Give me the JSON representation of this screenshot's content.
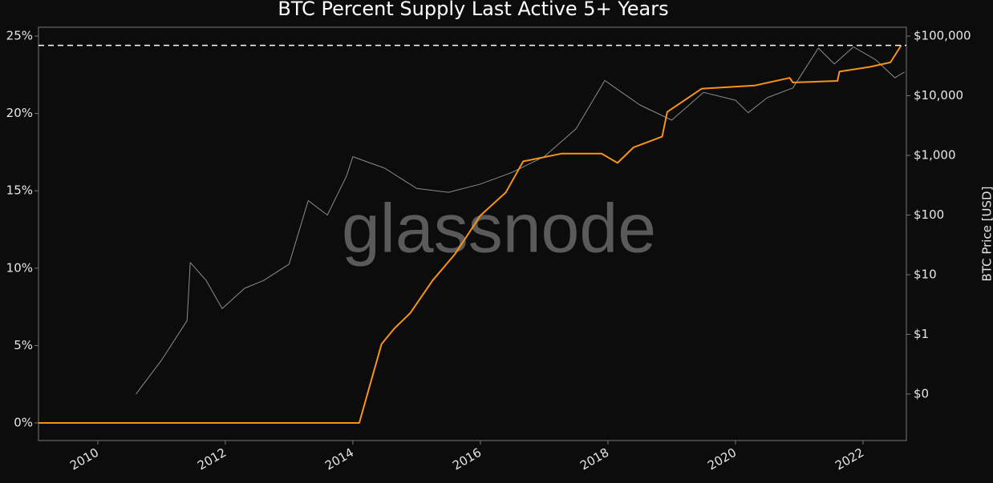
{
  "chart_data": {
    "type": "line",
    "title": "BTC Percent Supply Last Active 5+ Years",
    "watermark": "glassnode",
    "y2label": "BTC Price [USD]",
    "xlim": [
      2009.07,
      2022.68
    ],
    "xticks": [
      2010,
      2012,
      2014,
      2016,
      2018,
      2020,
      2022
    ],
    "ylim": [
      -1.14,
      25.57
    ],
    "yticks": [
      {
        "value": 0,
        "label": "0%"
      },
      {
        "value": 5,
        "label": "5%"
      },
      {
        "value": 10,
        "label": "10%"
      },
      {
        "value": 15,
        "label": "15%"
      },
      {
        "value": 20,
        "label": "20%"
      },
      {
        "value": 25,
        "label": "25%"
      }
    ],
    "y2lim": [
      0.0166,
      140600
    ],
    "y2log": true,
    "y2ticks": [
      {
        "value": 0.1,
        "label": "$0"
      },
      {
        "value": 1,
        "label": "$1"
      },
      {
        "value": 10,
        "label": "$10"
      },
      {
        "value": 100,
        "label": "$100"
      },
      {
        "value": 1000,
        "label": "$1,000"
      },
      {
        "value": 10000,
        "label": "$10,000"
      },
      {
        "value": 100000,
        "label": "$100,000"
      }
    ],
    "reference_line": {
      "y": 24.4,
      "color": "#ffffff"
    },
    "series": [
      {
        "color": "#8c8c8c",
        "axis": "y2",
        "x": [
          2010.6,
          2011.0,
          2011.4,
          2011.45,
          2011.7,
          2011.95,
          2012.3,
          2012.6,
          2013.0,
          2013.3,
          2013.6,
          2013.9,
          2014.0,
          2014.5,
          2015.0,
          2015.5,
          2016.0,
          2016.5,
          2017.0,
          2017.5,
          2017.95,
          2018.5,
          2019.0,
          2019.5,
          2020.0,
          2020.2,
          2020.5,
          2020.9,
          2021.3,
          2021.55,
          2021.85,
          2022.2,
          2022.5,
          2022.65
        ],
        "values": [
          0.1,
          0.37,
          1.7,
          16,
          8,
          2.7,
          5.9,
          8,
          15,
          175,
          100,
          450,
          950,
          610,
          280,
          240,
          330,
          520,
          950,
          2800,
          18000,
          7000,
          3900,
          11400,
          8400,
          5200,
          9300,
          13500,
          63000,
          34000,
          66000,
          40000,
          20000,
          25000
        ]
      },
      {
        "color": "#f7931a",
        "x": [
          2009.07,
          2014.1,
          2014.45,
          2014.65,
          2014.9,
          2015.25,
          2015.6,
          2016.0,
          2016.4,
          2016.67,
          2017.27,
          2017.9,
          2018.15,
          2018.4,
          2018.85,
          2018.93,
          2019.47,
          2020.3,
          2020.85,
          2020.9,
          2021.6,
          2021.63,
          2022.1,
          2022.43,
          2022.6
        ],
        "values": [
          0,
          0,
          5.1,
          6.1,
          7.1,
          9.2,
          10.9,
          13.4,
          14.9,
          16.9,
          17.4,
          17.4,
          16.8,
          17.8,
          18.5,
          20.1,
          21.6,
          21.8,
          22.3,
          22.0,
          22.1,
          22.7,
          23.0,
          23.3,
          24.4
        ]
      }
    ]
  }
}
